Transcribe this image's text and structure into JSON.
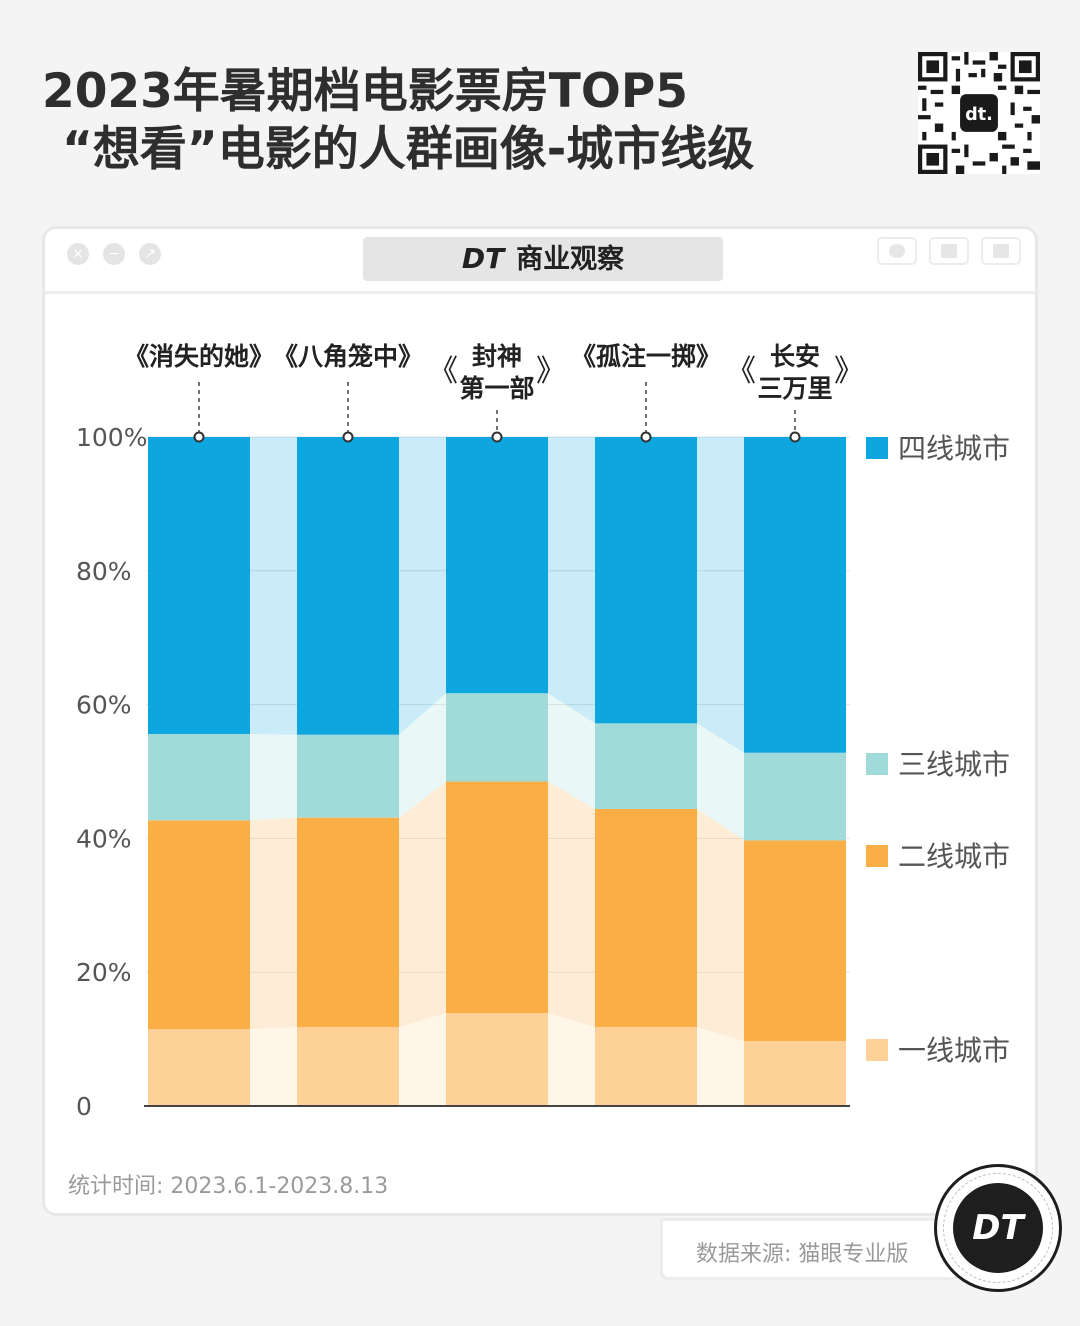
{
  "header": {
    "title_line1": "2023年暑期档电影票房TOP5",
    "title_line2": "“想看”电影的人群画像-城市线级"
  },
  "window": {
    "brand_mark": "DT",
    "brand_text": "商业观察"
  },
  "chart_data": {
    "type": "bar",
    "stacked": true,
    "categories": [
      "《消失的她》",
      "《八角笼中》",
      "《封神第一部》",
      "《孤注一掷》",
      "《长安三万里》"
    ],
    "category_labels": [
      [
        "《消失的她》"
      ],
      [
        "《八角笼中》"
      ],
      [
        "封神",
        "第一部"
      ],
      [
        "《孤注一掷》"
      ],
      [
        "长安",
        "三万里"
      ]
    ],
    "series": [
      {
        "name": "一线城市",
        "color": "#fdd197",
        "values": [
          11.5,
          11.8,
          13.9,
          11.8,
          9.7
        ]
      },
      {
        "name": "二线城市",
        "color": "#fbae45",
        "values": [
          31.2,
          31.3,
          34.6,
          32.6,
          30.0
        ]
      },
      {
        "name": "三线城市",
        "color": "#a0dbd9",
        "values": [
          12.9,
          12.4,
          13.2,
          12.8,
          13.1
        ]
      },
      {
        "name": "四线城市",
        "color": "#0ea6de",
        "values": [
          44.4,
          44.5,
          38.3,
          42.8,
          47.2
        ]
      }
    ],
    "yticks": [
      "0",
      "20%",
      "40%",
      "60%",
      "80%",
      "100%"
    ],
    "ylim": [
      0,
      100
    ],
    "legend_position": "right"
  },
  "footer": {
    "stat_time": "统计时间: 2023.6.1-2023.8.13",
    "source": "数据来源: 猫眼专业版",
    "logo_text": "DT"
  },
  "colors": {
    "title": "#2e2e2e",
    "connector_tint_alpha": "0.22"
  }
}
